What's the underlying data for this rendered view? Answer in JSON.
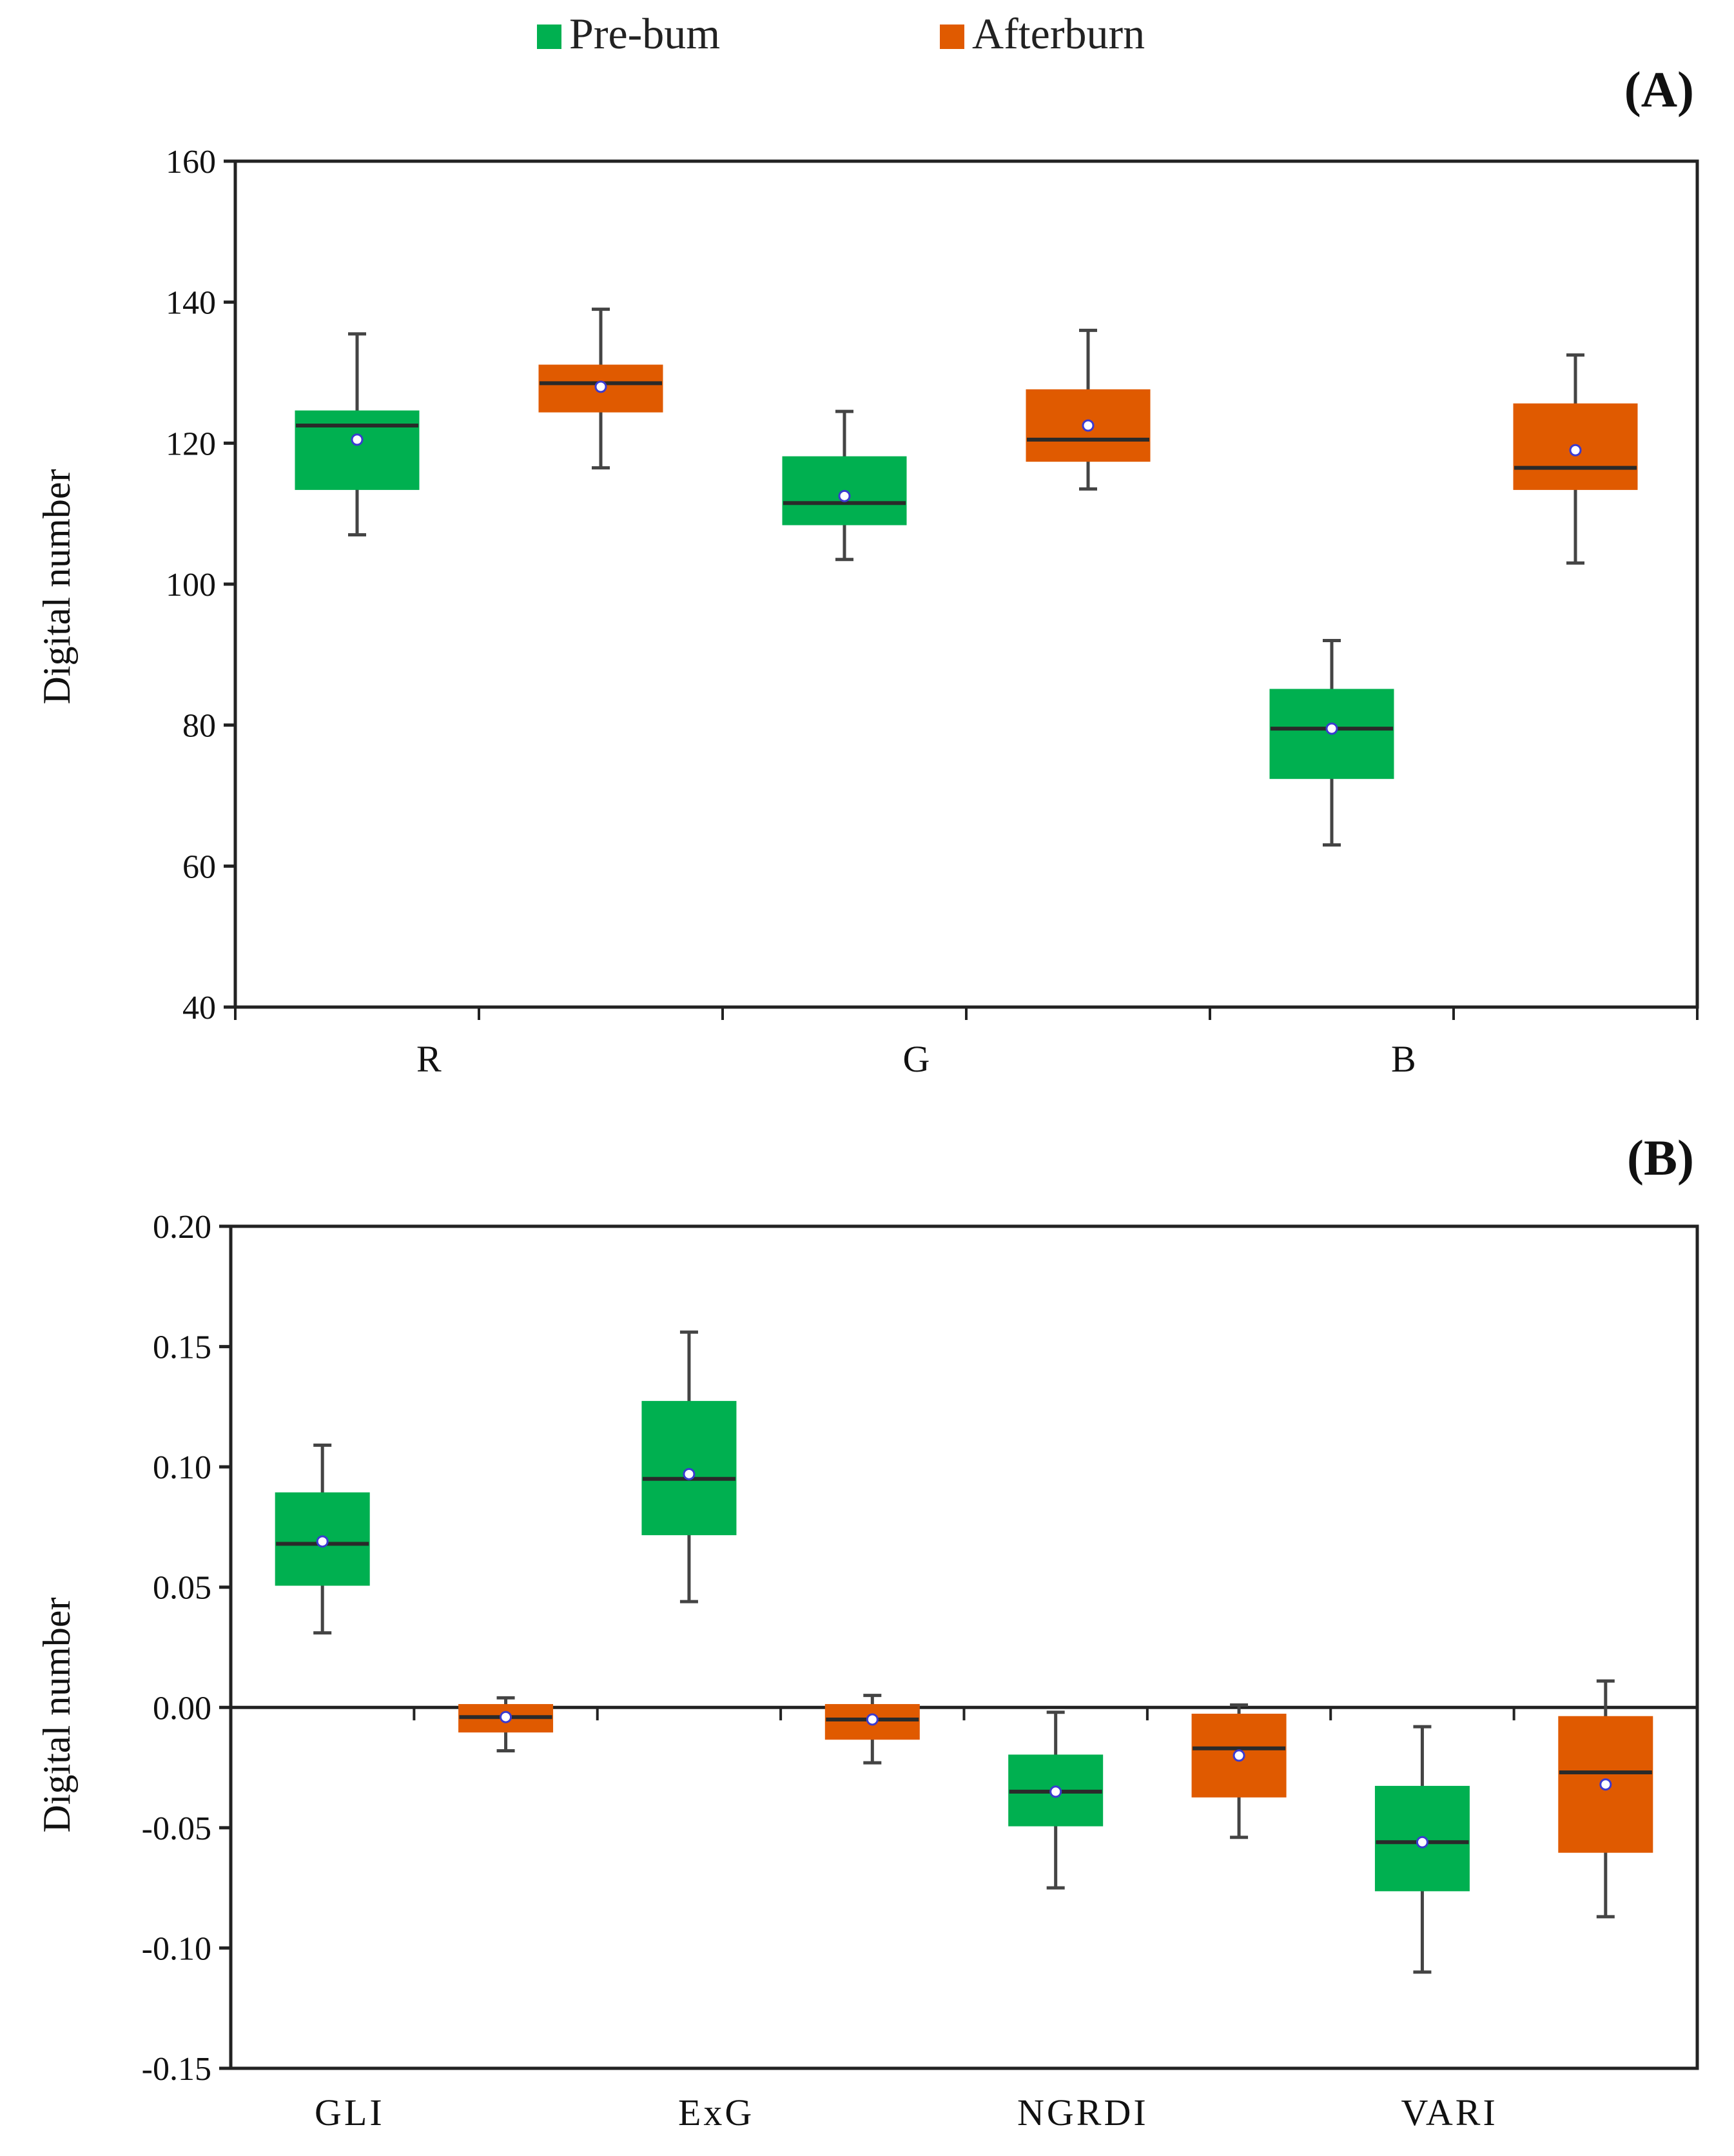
{
  "colors": {
    "prebum": "#00b050",
    "afterburn": "#e05a00",
    "mean_marker": "#ffffff",
    "mean_marker_stroke": "#3a3ad0",
    "axis": "#222222"
  },
  "legend": {
    "items": [
      {
        "label": "Pre-bum",
        "color": "#00b050"
      },
      {
        "label": "Afterburn",
        "color": "#e05a00"
      }
    ]
  },
  "chart_data": [
    {
      "type": "box",
      "panel_label": "(A)",
      "ylabel": "Digital number",
      "xlabel": "",
      "ylim": [
        40,
        160
      ],
      "yticks": [
        "40",
        "60",
        "80",
        "100",
        "120",
        "140",
        "160"
      ],
      "ytick_values": [
        40,
        60,
        80,
        100,
        120,
        140,
        160
      ],
      "categories": [
        "R",
        "G",
        "B"
      ],
      "series": [
        {
          "name": "Pre-bum",
          "boxes": [
            {
              "category": "R",
              "whisker_low": 107,
              "q1": 113.5,
              "median": 122.5,
              "q3": 124.5,
              "whisker_high": 135.5,
              "mean": 120.5
            },
            {
              "category": "G",
              "whisker_low": 103.5,
              "q1": 108.5,
              "median": 111.5,
              "q3": 118,
              "whisker_high": 124.5,
              "mean": 112.5
            },
            {
              "category": "B",
              "whisker_low": 63,
              "q1": 72.5,
              "median": 79.5,
              "q3": 85,
              "whisker_high": 92,
              "mean": 79.5
            }
          ]
        },
        {
          "name": "Afterburn",
          "boxes": [
            {
              "category": "R",
              "whisker_low": 116.5,
              "q1": 124.5,
              "median": 128.5,
              "q3": 131,
              "whisker_high": 139,
              "mean": 128
            },
            {
              "category": "G",
              "whisker_low": 113.5,
              "q1": 117.5,
              "median": 120.5,
              "q3": 127.5,
              "whisker_high": 136,
              "mean": 122.5
            },
            {
              "category": "B",
              "whisker_low": 103,
              "q1": 113.5,
              "median": 116.5,
              "q3": 125.5,
              "whisker_high": 132.5,
              "mean": 119
            }
          ]
        }
      ]
    },
    {
      "type": "box",
      "panel_label": "(B)",
      "ylabel": "Digital number",
      "xlabel": "",
      "ylim": [
        -0.15,
        0.2
      ],
      "yticks": [
        "-0.15",
        "-0.10",
        "-0.05",
        "0.00",
        "0.05",
        "0.10",
        "0.15",
        "0.20"
      ],
      "ytick_values": [
        -0.15,
        -0.1,
        -0.05,
        0,
        0.05,
        0.1,
        0.15,
        0.2
      ],
      "categories": [
        "GLI",
        "ExG",
        "NGRDI",
        "VARI"
      ],
      "series": [
        {
          "name": "Pre-bum",
          "boxes": [
            {
              "category": "GLI",
              "whisker_low": 0.031,
              "q1": 0.051,
              "median": 0.068,
              "q3": 0.089,
              "whisker_high": 0.109,
              "mean": 0.069
            },
            {
              "category": "ExG",
              "whisker_low": 0.044,
              "q1": 0.072,
              "median": 0.095,
              "q3": 0.127,
              "whisker_high": 0.156,
              "mean": 0.097
            },
            {
              "category": "NGRDI",
              "whisker_low": -0.075,
              "q1": -0.049,
              "median": -0.035,
              "q3": -0.02,
              "whisker_high": -0.002,
              "mean": -0.035
            },
            {
              "category": "VARI",
              "whisker_low": -0.11,
              "q1": -0.076,
              "median": -0.056,
              "q3": -0.033,
              "whisker_high": -0.008,
              "mean": -0.056
            }
          ]
        },
        {
          "name": "Afterburn",
          "boxes": [
            {
              "category": "GLI",
              "whisker_low": -0.018,
              "q1": -0.01,
              "median": -0.004,
              "q3": 0.001,
              "whisker_high": 0.004,
              "mean": -0.004
            },
            {
              "category": "ExG",
              "whisker_low": -0.023,
              "q1": -0.013,
              "median": -0.005,
              "q3": 0.001,
              "whisker_high": 0.005,
              "mean": -0.005
            },
            {
              "category": "NGRDI",
              "whisker_low": -0.054,
              "q1": -0.037,
              "median": -0.017,
              "q3": -0.003,
              "whisker_high": 0.001,
              "mean": -0.02
            },
            {
              "category": "VARI",
              "whisker_low": -0.087,
              "q1": -0.06,
              "median": -0.027,
              "q3": -0.004,
              "whisker_high": 0.011,
              "mean": -0.032
            }
          ]
        }
      ]
    }
  ]
}
